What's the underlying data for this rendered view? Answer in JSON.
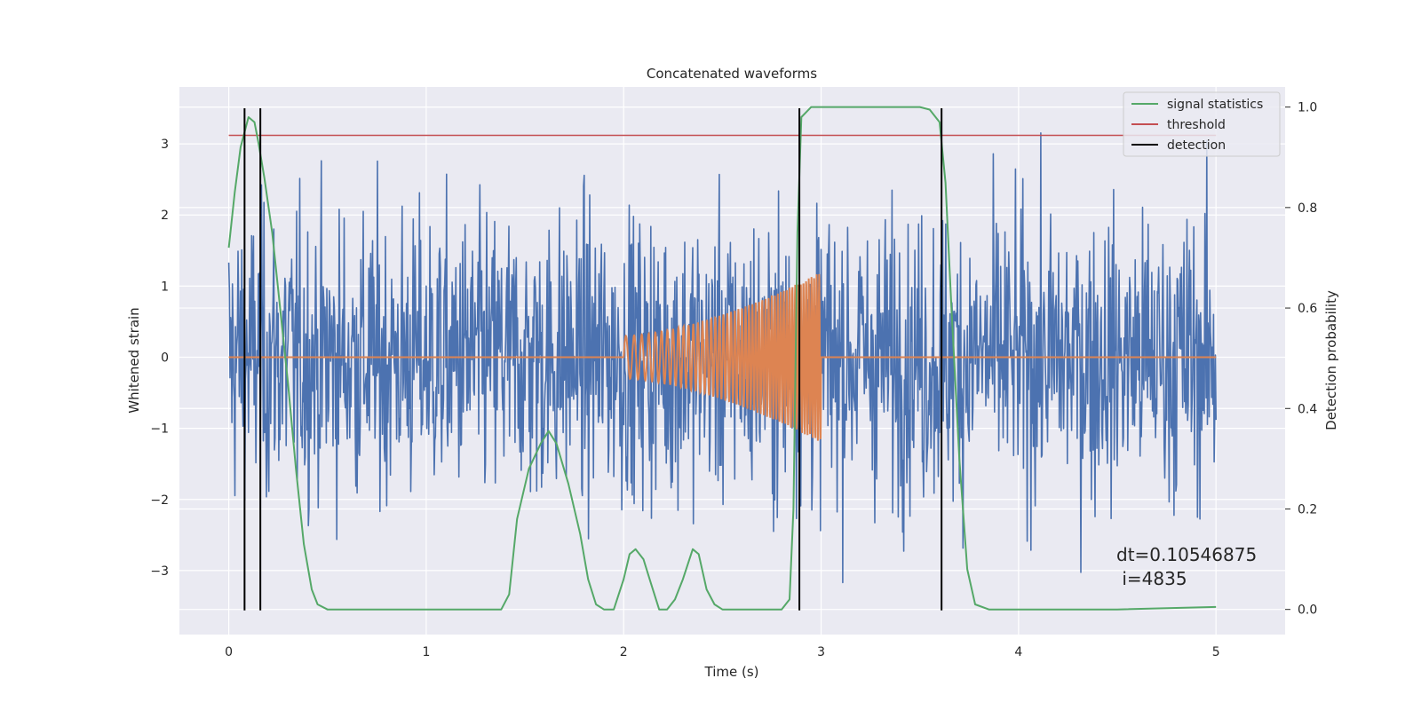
{
  "chart_data": {
    "type": "line",
    "title": "Concatenated waveforms",
    "xlabel": "Time (s)",
    "ylabel": "Whitened strain",
    "y2label": "Detection probability",
    "xlim": [
      -0.25,
      5.35
    ],
    "ylim": [
      -3.9,
      3.8
    ],
    "y2lim": [
      -0.05,
      1.04
    ],
    "x_ticks": [
      0,
      1,
      2,
      3,
      4,
      5
    ],
    "y_ticks": [
      -3,
      -2,
      -1,
      0,
      1,
      2,
      3
    ],
    "y2_ticks": [
      0.0,
      0.2,
      0.4,
      0.6,
      0.8,
      1.0
    ],
    "grid": true,
    "legend_position": "top-right",
    "colors": {
      "strain": "#4c72b0",
      "template": "#dd8452",
      "signal": "#55a868",
      "threshold": "#c44e52",
      "detection": "#000000",
      "background": "#eaeaf2"
    },
    "series": [
      {
        "name": "signal statistics",
        "axis": "right",
        "x": [
          0,
          0.03,
          0.06,
          0.1,
          0.13,
          0.15,
          0.18,
          0.22,
          0.26,
          0.3,
          0.34,
          0.38,
          0.42,
          0.45,
          0.5,
          1.0,
          1.38,
          1.42,
          1.46,
          1.52,
          1.58,
          1.62,
          1.66,
          1.72,
          1.78,
          1.82,
          1.86,
          1.9,
          1.95,
          2.0,
          2.03,
          2.06,
          2.1,
          2.14,
          2.18,
          2.22,
          2.26,
          2.3,
          2.35,
          2.38,
          2.42,
          2.46,
          2.5,
          2.6,
          2.8,
          2.84,
          2.86,
          2.88,
          2.9,
          2.95,
          3.0,
          3.5,
          3.55,
          3.6,
          3.63,
          3.66,
          3.7,
          3.74,
          3.78,
          3.85,
          4.5,
          5.0
        ],
        "y": [
          0.72,
          0.83,
          0.92,
          0.98,
          0.97,
          0.93,
          0.86,
          0.75,
          0.6,
          0.45,
          0.28,
          0.13,
          0.04,
          0.01,
          0.0,
          0.0,
          0.0,
          0.03,
          0.18,
          0.28,
          0.33,
          0.355,
          0.33,
          0.25,
          0.15,
          0.06,
          0.01,
          0.0,
          0.0,
          0.06,
          0.11,
          0.12,
          0.1,
          0.05,
          0.0,
          0.0,
          0.02,
          0.06,
          0.12,
          0.11,
          0.04,
          0.01,
          0.0,
          0.0,
          0.0,
          0.02,
          0.2,
          0.75,
          0.98,
          1.0,
          1.0,
          1.0,
          0.995,
          0.97,
          0.85,
          0.6,
          0.3,
          0.08,
          0.01,
          0.0,
          0.0,
          0.005
        ]
      },
      {
        "name": "threshold",
        "axis": "left",
        "x": [
          0,
          5
        ],
        "y": [
          3.12,
          3.12
        ]
      },
      {
        "name": "detection",
        "axis": "left",
        "x_positions": [
          0.08,
          0.16,
          2.89,
          3.61
        ],
        "y_range": [
          -3.56,
          3.5
        ]
      }
    ],
    "noise": {
      "x_range": [
        0,
        5
      ],
      "samples": 1600,
      "amplitude_range": [
        -3.5,
        3.45
      ],
      "typical_envelope": [
        -1.5,
        1.5
      ]
    },
    "template": {
      "x_start": 2.0,
      "x_end": 3.0,
      "amplitude_start": 0.3,
      "amplitude_end": 1.2
    },
    "annotations": [
      "dt=0.10546875",
      " i=4835"
    ]
  }
}
